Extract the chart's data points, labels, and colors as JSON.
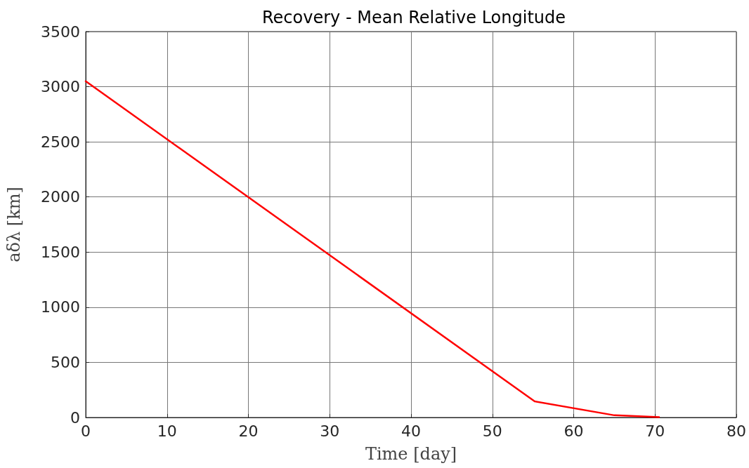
{
  "chart_data": {
    "type": "line",
    "title": "Recovery - Mean Relative Longitude",
    "xlabel": "Time [day]",
    "ylabel": "aδλ [km]",
    "series": [
      {
        "color": "#ff0000",
        "x": [
          0,
          55.2,
          65,
          70.5
        ],
        "values": [
          3050,
          146,
          20,
          3
        ]
      }
    ],
    "xlim": [
      0,
      80
    ],
    "xticks": [
      0,
      10,
      20,
      30,
      40,
      50,
      60,
      70,
      80
    ],
    "ylim": [
      0,
      3500
    ],
    "yticks": [
      0,
      500,
      1000,
      1500,
      2000,
      2500,
      3000,
      3500
    ],
    "grid": true,
    "marker": "none",
    "line_style": "solid"
  }
}
